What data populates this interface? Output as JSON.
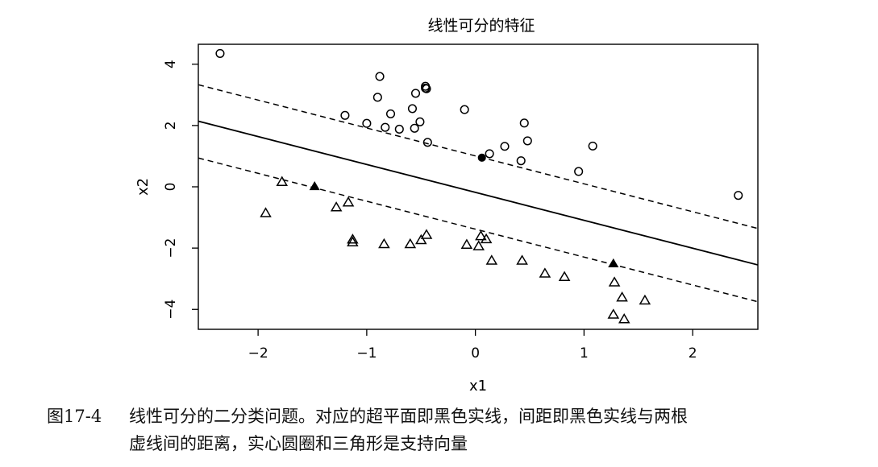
{
  "chart_data": {
    "type": "scatter",
    "title": "线性可分的特征",
    "xlabel": "x1",
    "ylabel": "x2",
    "xlim": [
      -2.55,
      2.6
    ],
    "ylim": [
      -4.65,
      4.65
    ],
    "x_ticks": [
      -2,
      -1,
      0,
      1,
      2
    ],
    "x_tick_labels": [
      "−2",
      "−1",
      "0",
      "1",
      "2"
    ],
    "y_ticks": [
      -4,
      -2,
      0,
      2,
      4
    ],
    "y_tick_labels": [
      "−4",
      "−2",
      "0",
      "2",
      "4"
    ],
    "grid": false,
    "legend": "none",
    "series": [
      {
        "marker": "circle-open",
        "points": [
          [
            -2.35,
            4.35
          ],
          [
            -0.88,
            3.6
          ],
          [
            -0.46,
            3.28
          ],
          [
            -0.46,
            3.22
          ],
          [
            -0.45,
            3.2
          ],
          [
            -0.55,
            3.05
          ],
          [
            -0.9,
            2.92
          ],
          [
            -0.58,
            2.55
          ],
          [
            -0.1,
            2.52
          ],
          [
            -0.78,
            2.38
          ],
          [
            -1.2,
            2.33
          ],
          [
            -1.0,
            2.07
          ],
          [
            -0.51,
            2.12
          ],
          [
            -0.83,
            1.94
          ],
          [
            -0.7,
            1.88
          ],
          [
            -0.56,
            1.91
          ],
          [
            0.45,
            2.08
          ],
          [
            -0.44,
            1.45
          ],
          [
            0.48,
            1.5
          ],
          [
            0.27,
            1.32
          ],
          [
            1.08,
            1.33
          ],
          [
            0.13,
            1.08
          ],
          [
            0.42,
            0.85
          ],
          [
            0.95,
            0.5
          ],
          [
            2.42,
            -0.28
          ]
        ]
      },
      {
        "marker": "circle-filled",
        "points": [
          [
            0.06,
            0.95
          ]
        ]
      },
      {
        "marker": "triangle-open",
        "points": [
          [
            -1.78,
            0.15
          ],
          [
            -1.93,
            -0.87
          ],
          [
            -1.17,
            -0.52
          ],
          [
            -1.28,
            -0.68
          ],
          [
            -1.13,
            -1.73
          ],
          [
            -1.13,
            -1.82
          ],
          [
            -0.84,
            -1.88
          ],
          [
            -0.6,
            -1.88
          ],
          [
            -0.5,
            -1.75
          ],
          [
            -0.45,
            -1.58
          ],
          [
            -0.08,
            -1.9
          ],
          [
            0.03,
            -1.95
          ],
          [
            0.05,
            -1.62
          ],
          [
            0.1,
            -1.72
          ],
          [
            0.15,
            -2.42
          ],
          [
            0.43,
            -2.42
          ],
          [
            0.64,
            -2.84
          ],
          [
            0.82,
            -2.95
          ],
          [
            1.28,
            -3.13
          ],
          [
            1.35,
            -3.62
          ],
          [
            1.56,
            -3.72
          ],
          [
            1.27,
            -4.18
          ],
          [
            1.37,
            -4.33
          ]
        ]
      },
      {
        "marker": "triangle-filled",
        "points": [
          [
            -1.48,
            0.0
          ],
          [
            1.27,
            -2.52
          ]
        ]
      }
    ],
    "lines": [
      {
        "style": "solid",
        "x": [
          -2.55,
          2.6
        ],
        "y": [
          2.14,
          -2.55
        ]
      },
      {
        "style": "dashed",
        "x": [
          -2.55,
          2.6
        ],
        "y": [
          3.33,
          -1.36
        ]
      },
      {
        "style": "dashed",
        "x": [
          -2.55,
          2.6
        ],
        "y": [
          0.94,
          -3.75
        ]
      }
    ]
  },
  "caption": {
    "number": "图17-4",
    "line1": "线性可分的二分类问题。对应的超平面即黑色实线，间距即黑色实线与两根",
    "line2": "虚线间的距离，实心圆圈和三角形是支持向量"
  }
}
